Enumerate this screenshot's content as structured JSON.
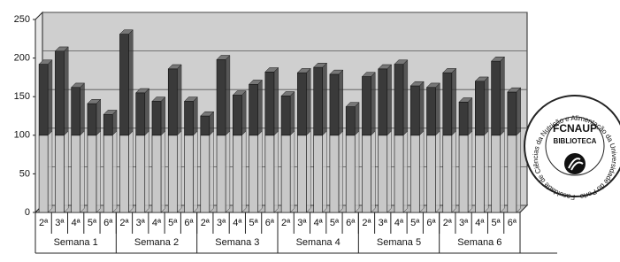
{
  "chart_data": {
    "type": "stacked-bar-3d",
    "categories": [
      "2ª",
      "3ª",
      "4ª",
      "5ª",
      "6ª",
      "2ª",
      "3ª",
      "4ª",
      "5ª",
      "6ª",
      "2ª",
      "3ª",
      "4ª",
      "5ª",
      "6ª",
      "2ª",
      "3ª",
      "4ª",
      "5ª",
      "6ª",
      "2ª",
      "3ª",
      "4ª",
      "5ª",
      "6ª",
      "2ª",
      "3ª",
      "4ª",
      "5ª",
      "6ª"
    ],
    "groups": [
      "Semana 1",
      "Semana 2",
      "Semana 3",
      "Semana 4",
      "Semana 5",
      "Semana 6"
    ],
    "series": [
      {
        "color": "#c8c8c8",
        "values": [
          100,
          100,
          100,
          100,
          100,
          100,
          100,
          100,
          100,
          100,
          100,
          100,
          100,
          100,
          100,
          100,
          100,
          100,
          100,
          100,
          100,
          100,
          100,
          100,
          100,
          100,
          100,
          100,
          100,
          100
        ]
      },
      {
        "color": "#3a3a3a",
        "values": [
          92,
          109,
          62,
          41,
          27,
          131,
          55,
          44,
          86,
          44,
          25,
          98,
          52,
          66,
          82,
          51,
          81,
          88,
          79,
          37,
          76,
          86,
          92,
          64,
          62,
          81,
          43,
          70,
          96,
          56
        ]
      }
    ],
    "ylim": [
      0,
      250
    ],
    "yticks": [
      0,
      50,
      100,
      150,
      200,
      250
    ],
    "grid": true
  },
  "stamp": {
    "name": "FCNAUP",
    "subtitle": "BIBLIOTECA",
    "ring": "Faculdade de Ciências da Nutrição e Alimentação da Universidade do Porto"
  }
}
